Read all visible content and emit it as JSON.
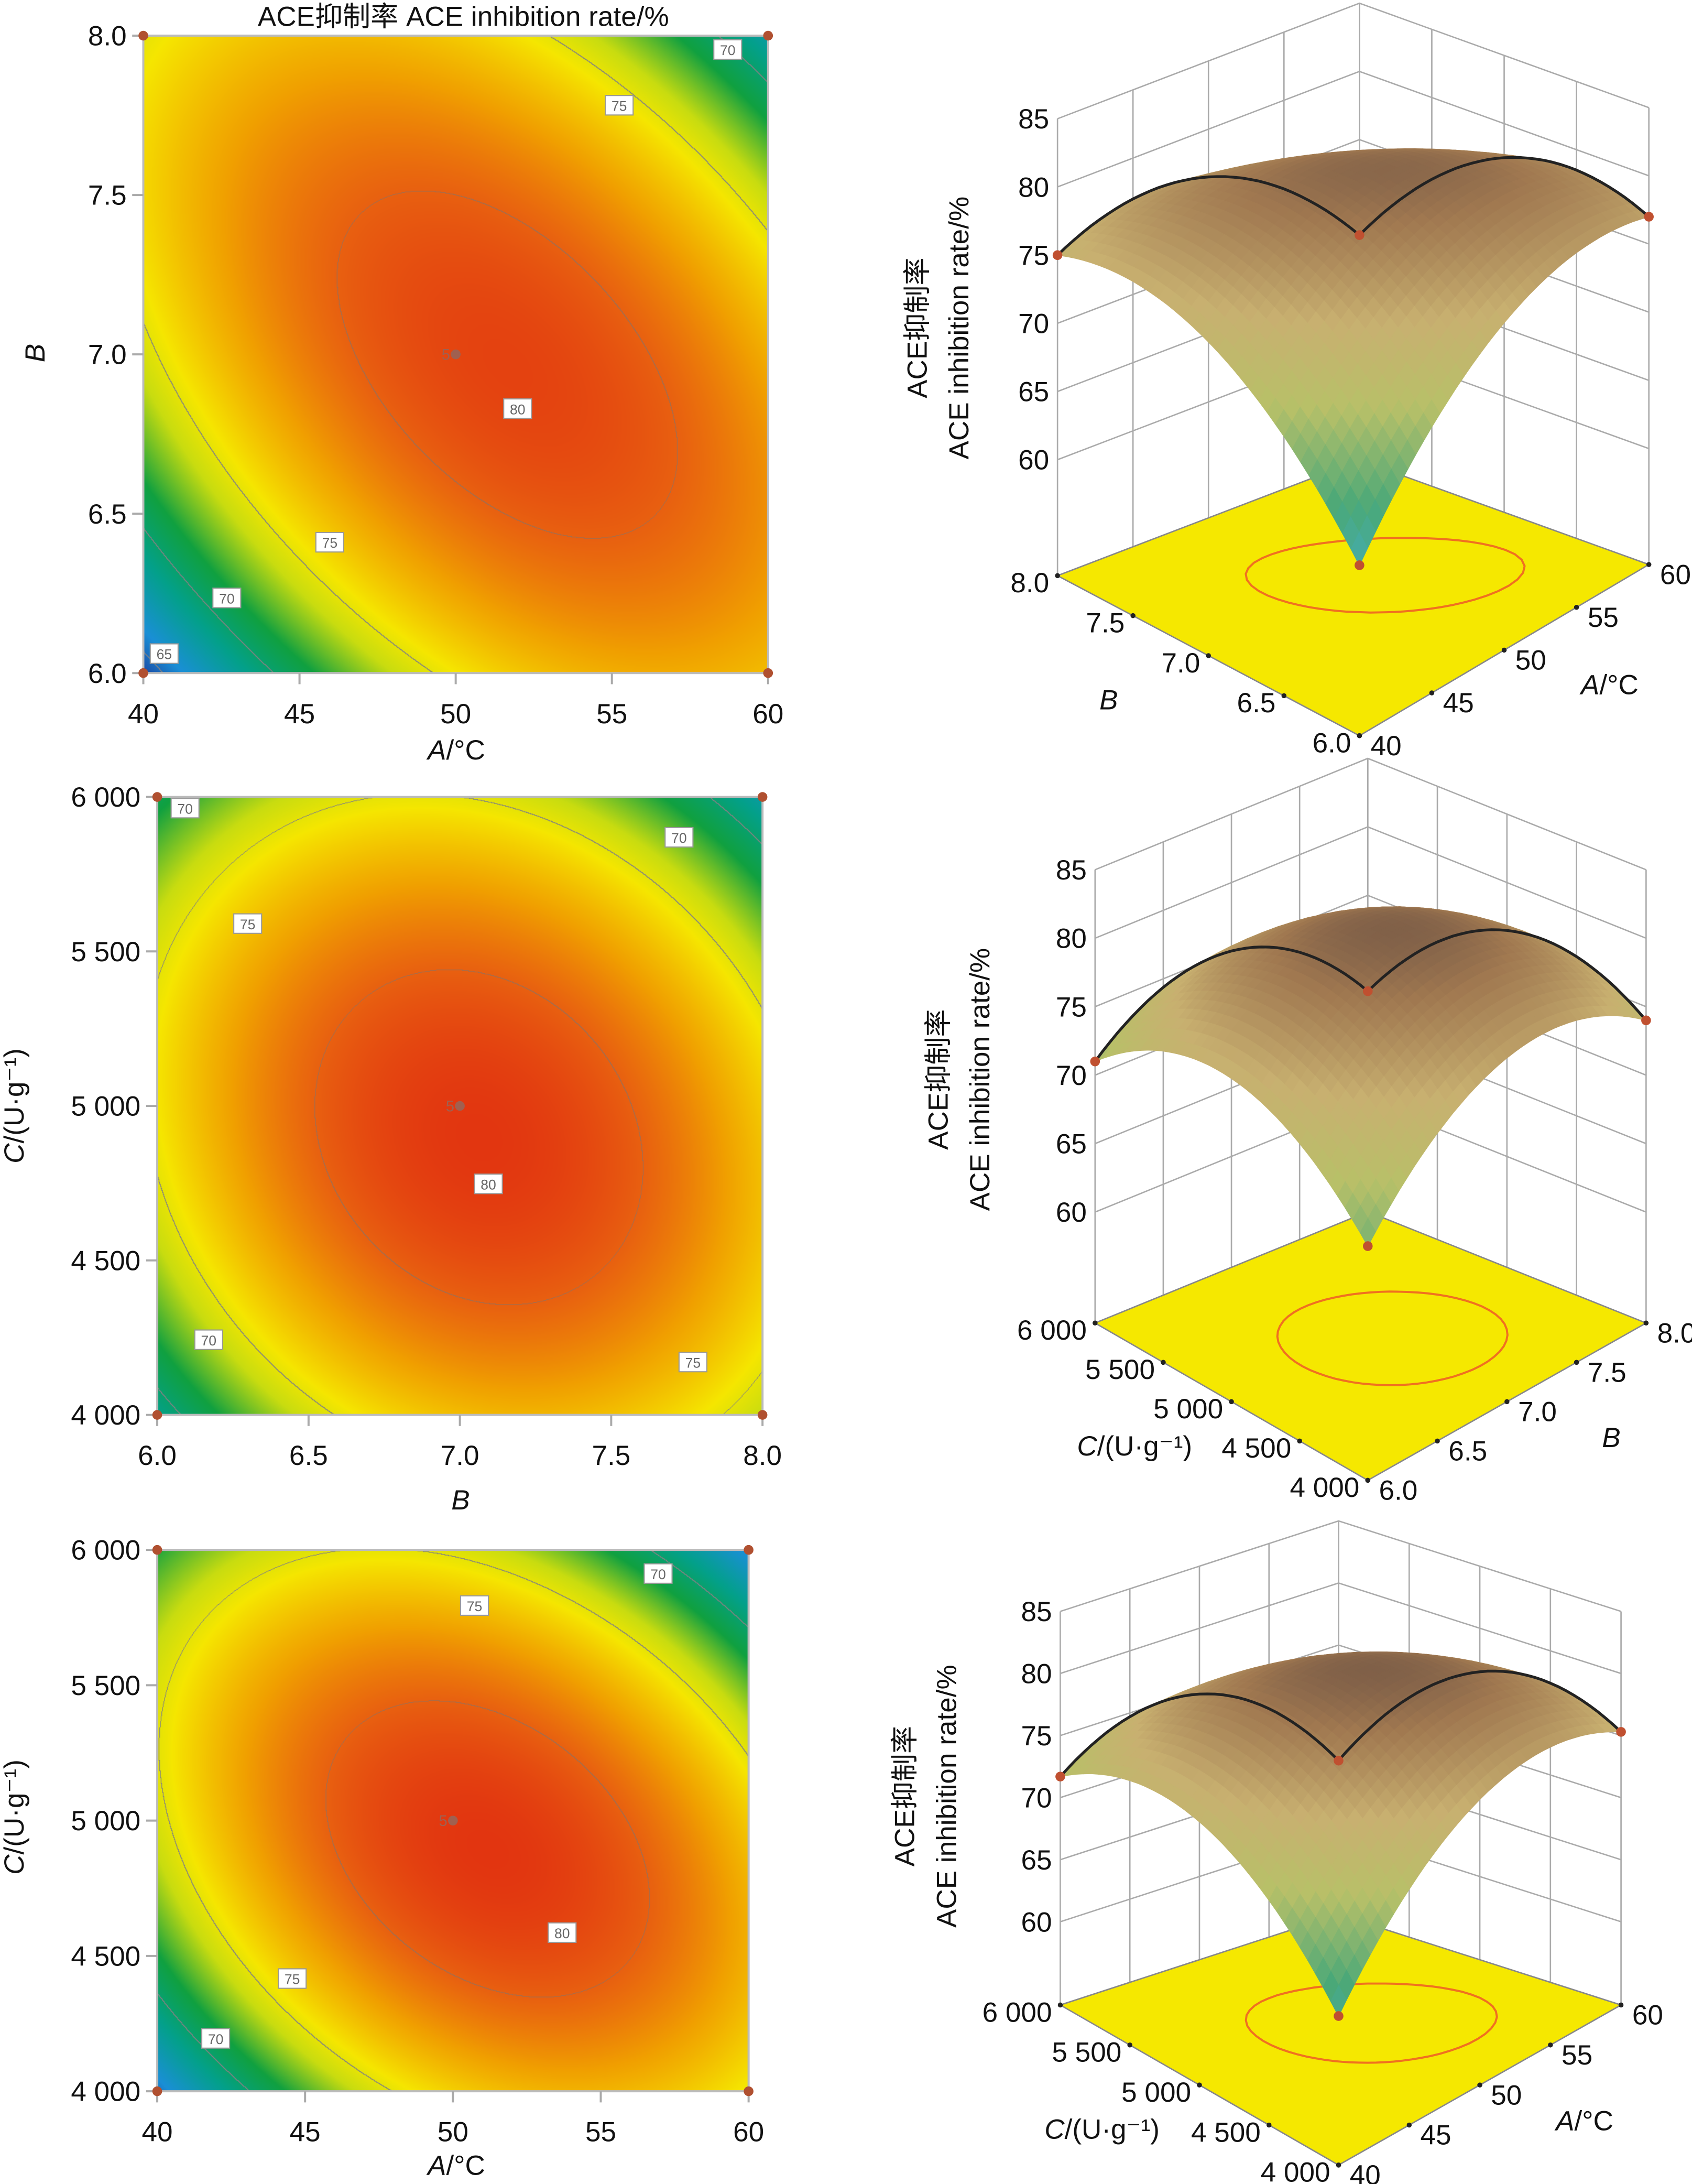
{
  "figure_title": "ACE抑制率 ACE inhibition rate/%",
  "chart_data": [
    {
      "type": "heatmap",
      "subtype": "contour",
      "title": "ACE抑制率 ACE inhibition rate/%",
      "x_var": "A",
      "x_unit": "/°C",
      "xlim": [
        40,
        60
      ],
      "xticks": [
        "40",
        "45",
        "50",
        "55",
        "60"
      ],
      "y_var": "B",
      "y_unit": "",
      "ylim": [
        6.0,
        8.0
      ],
      "yticks": [
        "6.0",
        "6.5",
        "7.0",
        "7.5",
        "8.0"
      ],
      "contour_levels": [
        65,
        70,
        75,
        80
      ],
      "contour_labels": [
        "70",
        "75",
        "80",
        "75",
        "70",
        "65"
      ],
      "center_point_label": "5",
      "approx_optimum": {
        "A": 51,
        "B": 7.0,
        "value": 81
      }
    },
    {
      "type": "surface",
      "z_label_lines": [
        "ACE抑制率",
        "ACE inhibition rate/%"
      ],
      "zlim": [
        60,
        85
      ],
      "zticks": [
        "60",
        "65",
        "70",
        "75",
        "80",
        "85"
      ],
      "right_var": "A",
      "right_unit": "/°C",
      "right_ticks": [
        "40",
        "45",
        "50",
        "55",
        "60"
      ],
      "left_var": "B",
      "left_unit": "",
      "left_ticks": [
        "6.0",
        "6.5",
        "7.0",
        "7.5",
        "8.0"
      ]
    },
    {
      "type": "heatmap",
      "subtype": "contour",
      "x_var": "B",
      "x_unit": "",
      "xlim": [
        6.0,
        8.0
      ],
      "xticks": [
        "6.0",
        "6.5",
        "7.0",
        "7.5",
        "8.0"
      ],
      "y_var": "C",
      "y_unit": "/(U·g⁻¹)",
      "ylim": [
        4000,
        6000
      ],
      "yticks": [
        "4 000",
        "4 500",
        "5 000",
        "5 500",
        "6 000"
      ],
      "contour_levels": [
        70,
        75,
        80
      ],
      "contour_labels": [
        "70",
        "70",
        "75",
        "80",
        "70",
        "75"
      ],
      "center_point_label": "5",
      "approx_optimum": {
        "B": 7.1,
        "C": 4850,
        "value": 81.5
      }
    },
    {
      "type": "surface",
      "z_label_lines": [
        "ACE抑制率",
        "ACE inhibition rate/%"
      ],
      "zlim": [
        60,
        85
      ],
      "zticks": [
        "60",
        "65",
        "70",
        "75",
        "80",
        "85"
      ],
      "right_var": "B",
      "right_unit": "",
      "right_ticks": [
        "6.0",
        "6.5",
        "7.0",
        "7.5",
        "8.0"
      ],
      "left_var": "C",
      "left_unit": "/(U·g⁻¹)",
      "left_ticks": [
        "4 000",
        "4 500",
        "5 000",
        "5 500",
        "6 000"
      ]
    },
    {
      "type": "heatmap",
      "subtype": "contour",
      "x_var": "A",
      "x_unit": "/°C",
      "xlim": [
        40,
        60
      ],
      "xticks": [
        "40",
        "45",
        "50",
        "55",
        "60"
      ],
      "y_var": "C",
      "y_unit": "/(U·g⁻¹)",
      "ylim": [
        4000,
        6000
      ],
      "yticks": [
        "4 000",
        "4 500",
        "5 000",
        "5 500",
        "6 000"
      ],
      "contour_levels": [
        70,
        75,
        80
      ],
      "contour_labels": [
        "70",
        "75",
        "80",
        "75",
        "70"
      ],
      "center_point_label": "5",
      "approx_optimum": {
        "A": 53,
        "C": 4800,
        "value": 81.5
      }
    },
    {
      "type": "surface",
      "z_label_lines": [
        "ACE抑制率",
        "ACE inhibition rate/%"
      ],
      "zlim": [
        60,
        85
      ],
      "zticks": [
        "60",
        "65",
        "70",
        "75",
        "80",
        "85"
      ],
      "right_var": "A",
      "right_unit": "/°C",
      "right_ticks": [
        "40",
        "45",
        "50",
        "55",
        "60"
      ],
      "left_var": "C",
      "left_unit": "/(U·g⁻¹)",
      "left_ticks": [
        "4 000",
        "4 500",
        "5 000",
        "5 500",
        "6 000"
      ]
    }
  ]
}
